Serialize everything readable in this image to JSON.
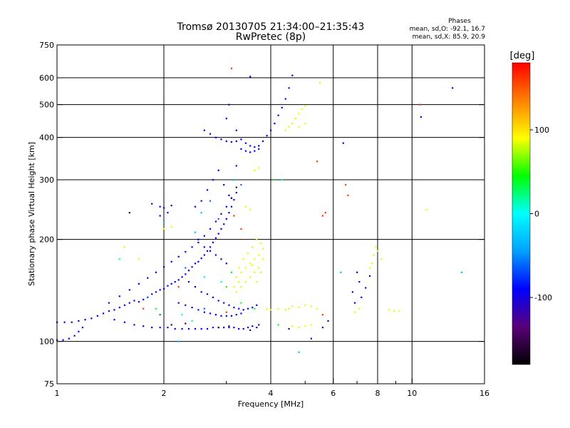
{
  "chart_data": {
    "type": "scatter",
    "title": "Tromsø 20130705 21:34:00–21:35:43",
    "subtitle": "RwPretec (8p)",
    "xlabel": "Frequency [MHz]",
    "ylabel": "Stationary phase Virtual Height [km]",
    "x_scale": "log",
    "y_scale": "log",
    "xlim": [
      1,
      16
    ],
    "ylim": [
      75,
      750
    ],
    "grid": true,
    "x_ticks": [
      1,
      2,
      4,
      6,
      8,
      10,
      16
    ],
    "x_tick_labels": [
      "1",
      "2",
      "4",
      "6",
      "8",
      "10",
      "16"
    ],
    "y_ticks": [
      75,
      100,
      200,
      300,
      400,
      500,
      600,
      750
    ],
    "y_tick_labels": [
      "75",
      "100",
      "200",
      "300",
      "400",
      "500",
      "600",
      "750"
    ],
    "x_minor_ticks": [
      3,
      5,
      7,
      9
    ],
    "phases_info": {
      "heading": "Phases",
      "line_o": "mean, sd,O: -92.1, 16.7",
      "line_x": "mean, sd,X:  85.9, 20.9"
    },
    "colorbar": {
      "label": "[deg]",
      "range": [
        -180,
        180
      ],
      "tick_values": [
        100,
        0,
        -100
      ],
      "tick_labels": [
        "100",
        "0",
        "-100"
      ],
      "colormap": [
        "#000000",
        "#5a007a",
        "#0000ff",
        "#00a0ff",
        "#00ffff",
        "#00ff00",
        "#ffff00",
        "#ff8000",
        "#ff0000"
      ]
    },
    "series": [
      {
        "name": "",
        "phase_deg": -95,
        "points": [
          [
            1.0,
            101
          ],
          [
            1.04,
            101
          ],
          [
            1.08,
            102
          ],
          [
            1.12,
            104
          ],
          [
            1.15,
            107
          ],
          [
            1.18,
            110
          ],
          [
            1.0,
            114
          ],
          [
            1.05,
            114
          ],
          [
            1.1,
            114
          ],
          [
            1.15,
            115
          ],
          [
            1.2,
            116
          ],
          [
            1.25,
            117
          ],
          [
            1.3,
            119
          ],
          [
            1.35,
            121
          ],
          [
            1.4,
            123
          ],
          [
            1.45,
            124
          ],
          [
            1.5,
            126
          ],
          [
            1.55,
            128
          ],
          [
            1.6,
            130
          ],
          [
            1.65,
            132
          ],
          [
            1.7,
            131
          ],
          [
            1.75,
            133
          ],
          [
            1.8,
            135
          ],
          [
            1.85,
            138
          ],
          [
            1.9,
            140
          ],
          [
            1.95,
            142
          ],
          [
            2.0,
            143
          ],
          [
            2.05,
            146
          ],
          [
            2.1,
            148
          ],
          [
            2.15,
            150
          ],
          [
            2.2,
            152
          ],
          [
            2.25,
            155
          ],
          [
            2.3,
            158
          ],
          [
            2.35,
            162
          ],
          [
            2.4,
            166
          ],
          [
            2.45,
            170
          ],
          [
            2.5,
            172
          ],
          [
            2.55,
            176
          ],
          [
            2.6,
            180
          ],
          [
            2.65,
            185
          ],
          [
            2.7,
            190
          ],
          [
            2.75,
            196
          ],
          [
            2.8,
            202
          ],
          [
            2.85,
            208
          ],
          [
            2.9,
            215
          ],
          [
            2.95,
            222
          ],
          [
            3.0,
            230
          ],
          [
            3.05,
            240
          ],
          [
            3.1,
            250
          ],
          [
            3.15,
            262
          ],
          [
            3.2,
            275
          ],
          [
            1.45,
            116
          ],
          [
            1.55,
            114
          ],
          [
            1.65,
            112
          ],
          [
            1.75,
            111
          ],
          [
            1.85,
            110
          ],
          [
            1.95,
            110
          ],
          [
            2.05,
            110
          ],
          [
            2.15,
            109
          ],
          [
            2.25,
            109
          ],
          [
            2.35,
            109
          ],
          [
            2.45,
            109
          ],
          [
            2.55,
            109
          ],
          [
            2.65,
            109
          ],
          [
            2.75,
            110
          ],
          [
            2.85,
            110
          ],
          [
            2.95,
            110
          ],
          [
            3.05,
            110
          ],
          [
            3.15,
            110
          ],
          [
            3.25,
            109
          ],
          [
            3.35,
            109
          ],
          [
            3.45,
            110
          ],
          [
            3.55,
            111
          ],
          [
            3.65,
            110
          ],
          [
            1.4,
            130
          ],
          [
            1.5,
            136
          ],
          [
            1.6,
            142
          ],
          [
            1.7,
            148
          ],
          [
            1.8,
            154
          ],
          [
            1.9,
            160
          ],
          [
            2.0,
            166
          ],
          [
            2.1,
            172
          ],
          [
            2.2,
            178
          ],
          [
            2.3,
            184
          ],
          [
            2.4,
            190
          ],
          [
            2.5,
            196
          ],
          [
            2.6,
            205
          ],
          [
            2.7,
            215
          ],
          [
            2.8,
            226
          ],
          [
            2.9,
            238
          ],
          [
            3.0,
            250
          ],
          [
            3.1,
            265
          ],
          [
            2.6,
            420
          ],
          [
            2.7,
            410
          ],
          [
            2.8,
            400
          ],
          [
            2.9,
            395
          ],
          [
            3.0,
            390
          ],
          [
            3.1,
            388
          ],
          [
            3.2,
            390
          ],
          [
            3.3,
            395
          ],
          [
            3.4,
            385
          ],
          [
            3.5,
            378
          ],
          [
            3.6,
            375
          ],
          [
            3.7,
            378
          ],
          [
            3.8,
            390
          ],
          [
            3.9,
            405
          ],
          [
            4.0,
            420
          ],
          [
            4.1,
            440
          ],
          [
            4.2,
            465
          ],
          [
            4.3,
            490
          ],
          [
            4.4,
            520
          ],
          [
            4.5,
            560
          ],
          [
            4.6,
            610
          ],
          [
            3.3,
            370
          ],
          [
            3.4,
            365
          ],
          [
            3.5,
            362
          ],
          [
            3.6,
            365
          ],
          [
            3.7,
            370
          ],
          [
            3.0,
            455
          ],
          [
            3.05,
            500
          ],
          [
            3.2,
            420
          ],
          [
            1.85,
            255
          ],
          [
            1.95,
            250
          ],
          [
            2.0,
            248
          ],
          [
            2.1,
            252
          ],
          [
            1.95,
            235
          ],
          [
            2.05,
            240
          ],
          [
            2.45,
            250
          ],
          [
            2.55,
            260
          ],
          [
            2.65,
            280
          ],
          [
            2.75,
            300
          ],
          [
            2.85,
            320
          ],
          [
            2.95,
            290
          ],
          [
            3.05,
            270
          ],
          [
            3.15,
            300
          ],
          [
            3.2,
            330
          ],
          [
            2.5,
            200
          ],
          [
            2.6,
            190
          ],
          [
            2.7,
            185
          ],
          [
            2.8,
            180
          ],
          [
            2.9,
            175
          ],
          [
            3.0,
            170
          ],
          [
            2.35,
            150
          ],
          [
            2.45,
            145
          ],
          [
            2.55,
            140
          ],
          [
            2.65,
            138
          ],
          [
            2.75,
            135
          ],
          [
            2.85,
            132
          ],
          [
            2.95,
            130
          ],
          [
            3.05,
            128
          ],
          [
            3.15,
            126
          ],
          [
            3.25,
            125
          ],
          [
            3.35,
            124
          ],
          [
            3.45,
            125
          ],
          [
            3.55,
            126
          ],
          [
            3.65,
            128
          ],
          [
            2.2,
            130
          ],
          [
            2.3,
            128
          ],
          [
            2.4,
            126
          ],
          [
            2.5,
            124
          ],
          [
            2.6,
            122
          ],
          [
            2.7,
            121
          ],
          [
            2.8,
            120
          ],
          [
            2.9,
            119
          ],
          [
            3.0,
            119
          ],
          [
            3.1,
            119
          ],
          [
            3.2,
            120
          ],
          [
            3.3,
            121
          ],
          [
            5.2,
            102
          ],
          [
            6.4,
            385
          ],
          [
            6.8,
            140
          ],
          [
            7.0,
            160
          ],
          [
            7.1,
            150
          ],
          [
            7.2,
            135
          ],
          [
            7.4,
            144
          ],
          [
            7.6,
            156
          ],
          [
            10.6,
            460
          ],
          [
            13.0,
            560
          ],
          [
            3.5,
            605
          ],
          [
            5.6,
            110
          ],
          [
            6.9,
            130
          ]
        ]
      },
      {
        "name": "",
        "phase_deg": 85,
        "points": [
          [
            3.2,
            140
          ],
          [
            3.3,
            145
          ],
          [
            3.4,
            150
          ],
          [
            3.5,
            155
          ],
          [
            3.6,
            160
          ],
          [
            3.7,
            165
          ],
          [
            3.8,
            175
          ],
          [
            3.3,
            160
          ],
          [
            3.4,
            165
          ],
          [
            3.5,
            170
          ],
          [
            3.6,
            175
          ],
          [
            3.7,
            180
          ],
          [
            3.8,
            188
          ],
          [
            3.2,
            155
          ],
          [
            3.25,
            150
          ],
          [
            3.55,
            190
          ],
          [
            3.65,
            200
          ],
          [
            3.75,
            195
          ],
          [
            3.45,
            182
          ],
          [
            3.35,
            175
          ],
          [
            3.15,
            145
          ],
          [
            3.25,
            165
          ],
          [
            3.55,
            168
          ],
          [
            3.65,
            150
          ],
          [
            3.75,
            160
          ],
          [
            4.4,
            420
          ],
          [
            4.5,
            430
          ],
          [
            4.6,
            440
          ],
          [
            4.7,
            455
          ],
          [
            4.8,
            470
          ],
          [
            4.9,
            485
          ],
          [
            5.0,
            495
          ],
          [
            4.8,
            430
          ],
          [
            5.0,
            440
          ],
          [
            3.6,
            320
          ],
          [
            3.7,
            325
          ],
          [
            4.5,
            125
          ],
          [
            4.6,
            127
          ],
          [
            4.8,
            126
          ],
          [
            5.0,
            128
          ],
          [
            5.2,
            127
          ],
          [
            5.4,
            125
          ],
          [
            4.2,
            125
          ],
          [
            4.4,
            124
          ],
          [
            4.6,
            111
          ],
          [
            4.8,
            110
          ],
          [
            5.0,
            111
          ],
          [
            5.2,
            112
          ],
          [
            3.9,
            125
          ],
          [
            4.0,
            124
          ],
          [
            7.7,
            170
          ],
          [
            7.8,
            180
          ],
          [
            7.9,
            190
          ],
          [
            8.0,
            185
          ],
          [
            8.2,
            175
          ],
          [
            7.6,
            165
          ],
          [
            6.9,
            122
          ],
          [
            7.1,
            125
          ],
          [
            8.6,
            124
          ],
          [
            8.9,
            123
          ],
          [
            9.2,
            123
          ],
          [
            3.4,
            250
          ],
          [
            3.5,
            245
          ],
          [
            2.0,
            215
          ],
          [
            2.1,
            218
          ],
          [
            1.55,
            190
          ],
          [
            1.7,
            175
          ],
          [
            11.0,
            245
          ],
          [
            5.5,
            580
          ]
        ]
      },
      {
        "name": "",
        "phase_deg": 10,
        "points": [
          [
            1.5,
            175
          ],
          [
            2.25,
            120
          ],
          [
            2.4,
            115
          ],
          [
            4.3,
            300
          ],
          [
            2.6,
            155
          ],
          [
            2.9,
            150
          ]
        ]
      },
      {
        "name": "",
        "phase_deg": 40,
        "points": [
          [
            3.1,
            160
          ],
          [
            3.0,
            145
          ],
          [
            3.3,
            130
          ],
          [
            4.2,
            112
          ],
          [
            4.1,
            300
          ],
          [
            1.9,
            125
          ],
          [
            3.6,
            125
          ]
        ]
      },
      {
        "name": "",
        "phase_deg": 160,
        "points": [
          [
            3.1,
            640
          ],
          [
            5.4,
            340
          ],
          [
            5.6,
            235
          ],
          [
            5.7,
            240
          ],
          [
            6.5,
            290
          ],
          [
            6.6,
            270
          ],
          [
            10.5,
            500
          ],
          [
            1.75,
            125
          ],
          [
            2.2,
            145
          ],
          [
            3.0,
            122
          ],
          [
            3.3,
            215
          ],
          [
            3.15,
            235
          ],
          [
            5.6,
            120
          ]
        ]
      },
      {
        "name": "",
        "phase_deg": -150,
        "points": [
          [
            1.6,
            240
          ],
          [
            2.1,
            112
          ],
          [
            2.3,
            113
          ],
          [
            3.05,
            111
          ],
          [
            3.5,
            108
          ],
          [
            3.7,
            112
          ],
          [
            4.5,
            109
          ],
          [
            5.8,
            115
          ],
          [
            3.1,
            265
          ],
          [
            3.2,
            285
          ],
          [
            2.85,
            110
          ]
        ]
      },
      {
        "name": "",
        "phase_deg": -30,
        "points": [
          [
            2.0,
            225
          ],
          [
            2.2,
            100
          ],
          [
            4.8,
            93
          ],
          [
            6.3,
            160
          ],
          [
            2.55,
            240
          ],
          [
            3.15,
            300
          ],
          [
            2.45,
            210
          ],
          [
            13.8,
            160
          ]
        ]
      },
      {
        "name": "",
        "phase_deg": -60,
        "points": [
          [
            1.8,
            135
          ],
          [
            2.7,
            260
          ],
          [
            2.85,
            230
          ],
          [
            3.3,
            290
          ],
          [
            1.95,
            120
          ],
          [
            2.3,
            165
          ],
          [
            2.6,
            125
          ]
        ]
      }
    ]
  }
}
